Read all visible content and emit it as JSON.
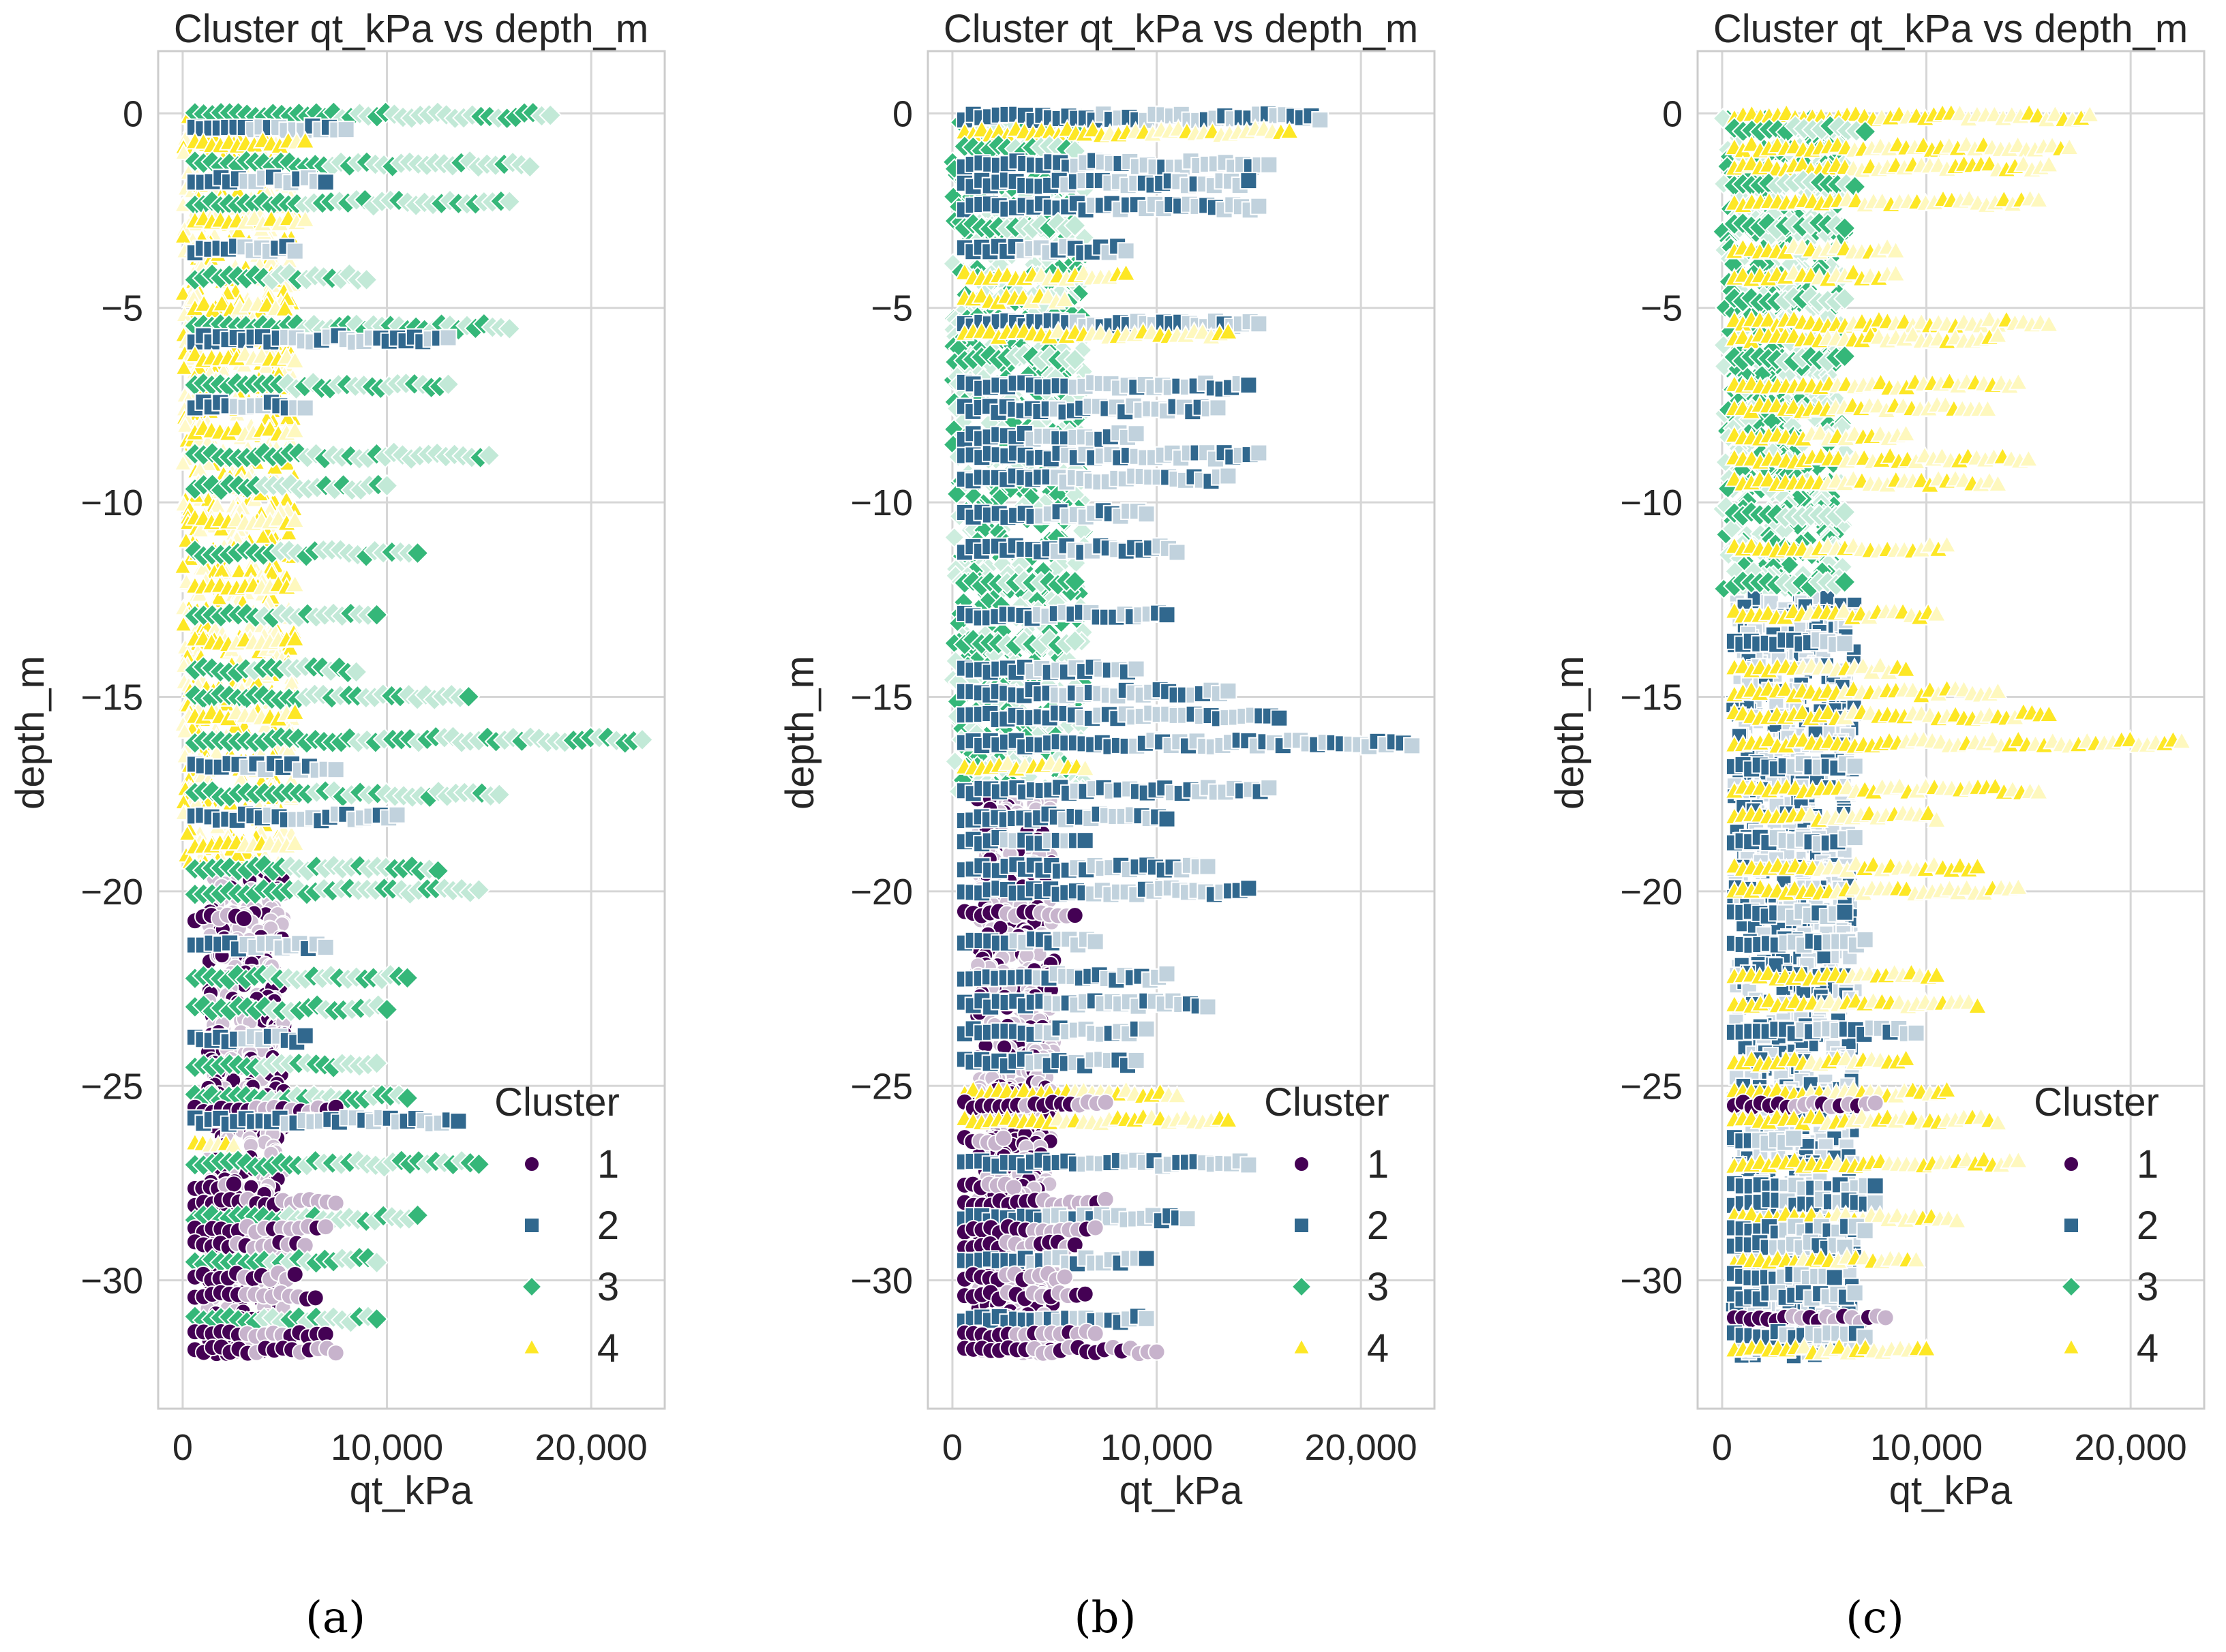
{
  "colors": {
    "1": "#440154",
    "2": "#31688e",
    "3": "#35b779",
    "4": "#fde725",
    "background": "#ffffff",
    "grid": "#d6d6d6",
    "axes_edge": "#cccccc",
    "text": "#262626"
  },
  "markers": {
    "1": "circle",
    "2": "square",
    "3": "diamond",
    "4": "triangle"
  },
  "chart_data": [
    {
      "type": "scatter",
      "caption": "(a)",
      "title": "Cluster qt_kPa vs depth_m",
      "xlabel": "qt_kPa",
      "ylabel": "depth_m",
      "xlim": [
        -1200,
        23600
      ],
      "ylim": [
        -33.3,
        1.6
      ],
      "xticks": [
        0,
        10000,
        20000
      ],
      "xtick_labels": [
        "0",
        "10,000",
        "20,000"
      ],
      "yticks": [
        0,
        -5,
        -10,
        -15,
        -20,
        -25,
        -30
      ],
      "ytick_labels": [
        "0",
        "−5",
        "−10",
        "−15",
        "−20",
        "−25",
        "−30"
      ],
      "legend": {
        "title": "Cluster",
        "entries": [
          "1",
          "2",
          "3",
          "4"
        ],
        "loc": "lower-right"
      },
      "bands": [
        {
          "d": -0.05,
          "c": 3,
          "x": 18000
        },
        {
          "d": -0.4,
          "c": 2,
          "x": 8000
        },
        {
          "d": -0.8,
          "c": 4,
          "x": 6000
        },
        {
          "d": -1.3,
          "c": 3,
          "x": 17000
        },
        {
          "d": -1.7,
          "c": 2,
          "x": 7000
        },
        {
          "d": -2.3,
          "c": 3,
          "x": 16000
        },
        {
          "d": -2.8,
          "c": 4,
          "x": 6000
        },
        {
          "d": -3.5,
          "c": 2,
          "x": 5500
        },
        {
          "d": -4.2,
          "c": 3,
          "x": 9000
        },
        {
          "d": -5.0,
          "c": 4,
          "x": 5000
        },
        {
          "d": -5.5,
          "c": 3,
          "x": 16000
        },
        {
          "d": -5.8,
          "c": 2,
          "x": 13000
        },
        {
          "d": -6.3,
          "c": 4,
          "x": 5500
        },
        {
          "d": -7.0,
          "c": 3,
          "x": 13000
        },
        {
          "d": -7.5,
          "c": 2,
          "x": 6000
        },
        {
          "d": -8.2,
          "c": 4,
          "x": 5500
        },
        {
          "d": -8.8,
          "c": 3,
          "x": 15000
        },
        {
          "d": -9.6,
          "c": 3,
          "x": 10000
        },
        {
          "d": -10.5,
          "c": 4,
          "x": 5500
        },
        {
          "d": -11.3,
          "c": 3,
          "x": 11500
        },
        {
          "d": -12.2,
          "c": 4,
          "x": 5500
        },
        {
          "d": -12.9,
          "c": 3,
          "x": 9500
        },
        {
          "d": -13.6,
          "c": 4,
          "x": 5500
        },
        {
          "d": -14.3,
          "c": 3,
          "x": 8500
        },
        {
          "d": -15.0,
          "c": 3,
          "x": 14000
        },
        {
          "d": -15.5,
          "c": 4,
          "x": 5500
        },
        {
          "d": -16.1,
          "c": 3,
          "x": 22500
        },
        {
          "d": -16.8,
          "c": 2,
          "x": 7500
        },
        {
          "d": -17.5,
          "c": 3,
          "x": 15500
        },
        {
          "d": -18.1,
          "c": 2,
          "x": 10500
        },
        {
          "d": -18.8,
          "c": 4,
          "x": 5500
        },
        {
          "d": -19.4,
          "c": 3,
          "x": 12500
        },
        {
          "d": -20.0,
          "c": 3,
          "x": 14500
        },
        {
          "d": -20.7,
          "c": 1,
          "x": 3000
        },
        {
          "d": -21.4,
          "c": 2,
          "x": 7000
        },
        {
          "d": -22.2,
          "c": 3,
          "x": 11000
        },
        {
          "d": -23.0,
          "c": 3,
          "x": 10000
        },
        {
          "d": -23.8,
          "c": 2,
          "x": 6000
        },
        {
          "d": -24.5,
          "c": 3,
          "x": 9500
        },
        {
          "d": -25.3,
          "c": 3,
          "x": 11000
        },
        {
          "d": -25.6,
          "c": 1,
          "x": 7500
        },
        {
          "d": -25.9,
          "c": 2,
          "x": 13500
        },
        {
          "d": -26.5,
          "c": 4,
          "x": 2500
        },
        {
          "d": -27.0,
          "c": 3,
          "x": 14500
        },
        {
          "d": -27.6,
          "c": 1,
          "x": 2500
        },
        {
          "d": -28.0,
          "c": 1,
          "x": 7500
        },
        {
          "d": -28.4,
          "c": 3,
          "x": 11500
        },
        {
          "d": -28.7,
          "c": 1,
          "x": 7000
        },
        {
          "d": -29.1,
          "c": 1,
          "x": 6000
        },
        {
          "d": -29.5,
          "c": 3,
          "x": 9500
        },
        {
          "d": -29.9,
          "c": 1,
          "x": 5500
        },
        {
          "d": -30.4,
          "c": 1,
          "x": 6500
        },
        {
          "d": -31.0,
          "c": 3,
          "x": 9500
        },
        {
          "d": -31.4,
          "c": 1,
          "x": 7000
        },
        {
          "d": -31.8,
          "c": 1,
          "x": 7500
        }
      ],
      "ribbon": [
        {
          "dmin": -0.2,
          "dmax": -19.5,
          "c": 4,
          "xmin": 0,
          "xmax": 5500
        },
        {
          "dmin": -19.5,
          "dmax": -32,
          "c": 1,
          "xmin": 1200,
          "xmax": 5000
        }
      ]
    },
    {
      "type": "scatter",
      "caption": "(b)",
      "title": "Cluster qt_kPa vs depth_m",
      "xlabel": "qt_kPa",
      "ylabel": "depth_m",
      "xlim": [
        -1200,
        23600
      ],
      "ylim": [
        -33.3,
        1.6
      ],
      "xticks": [
        0,
        10000,
        20000
      ],
      "xtick_labels": [
        "0",
        "10,000",
        "20,000"
      ],
      "yticks": [
        0,
        -5,
        -10,
        -15,
        -20,
        -25,
        -30
      ],
      "ytick_labels": [
        "0",
        "−5",
        "−10",
        "−15",
        "−20",
        "−25",
        "−30"
      ],
      "legend": {
        "title": "Cluster",
        "entries": [
          "1",
          "2",
          "3",
          "4"
        ],
        "loc": "lower-right"
      },
      "bands": [
        {
          "d": -0.1,
          "c": 2,
          "x": 18000
        },
        {
          "d": -0.5,
          "c": 4,
          "x": 16500
        },
        {
          "d": -0.9,
          "c": 3,
          "x": 6000
        },
        {
          "d": -1.3,
          "c": 2,
          "x": 15500
        },
        {
          "d": -1.8,
          "c": 2,
          "x": 14500
        },
        {
          "d": -2.4,
          "c": 2,
          "x": 15000
        },
        {
          "d": -2.9,
          "c": 3,
          "x": 6000
        },
        {
          "d": -3.5,
          "c": 2,
          "x": 8500
        },
        {
          "d": -4.2,
          "c": 4,
          "x": 8500
        },
        {
          "d": -4.8,
          "c": 4,
          "x": 5500
        },
        {
          "d": -5.4,
          "c": 2,
          "x": 15000
        },
        {
          "d": -5.7,
          "c": 4,
          "x": 13500
        },
        {
          "d": -6.3,
          "c": 3,
          "x": 6000
        },
        {
          "d": -7.0,
          "c": 2,
          "x": 14500
        },
        {
          "d": -7.6,
          "c": 2,
          "x": 13000
        },
        {
          "d": -8.3,
          "c": 2,
          "x": 9000
        },
        {
          "d": -8.8,
          "c": 2,
          "x": 15000
        },
        {
          "d": -9.4,
          "c": 2,
          "x": 13500
        },
        {
          "d": -10.3,
          "c": 2,
          "x": 9500
        },
        {
          "d": -11.2,
          "c": 2,
          "x": 11000
        },
        {
          "d": -12.1,
          "c": 3,
          "x": 6000
        },
        {
          "d": -12.9,
          "c": 2,
          "x": 10500
        },
        {
          "d": -13.6,
          "c": 3,
          "x": 6000
        },
        {
          "d": -14.3,
          "c": 2,
          "x": 9000
        },
        {
          "d": -14.9,
          "c": 2,
          "x": 13500
        },
        {
          "d": -15.5,
          "c": 2,
          "x": 16000
        },
        {
          "d": -16.2,
          "c": 2,
          "x": 22500
        },
        {
          "d": -16.8,
          "c": 4,
          "x": 6500
        },
        {
          "d": -17.4,
          "c": 2,
          "x": 15500
        },
        {
          "d": -18.1,
          "c": 2,
          "x": 10500
        },
        {
          "d": -18.7,
          "c": 2,
          "x": 6500
        },
        {
          "d": -19.4,
          "c": 2,
          "x": 12500
        },
        {
          "d": -20.0,
          "c": 2,
          "x": 14500
        },
        {
          "d": -20.6,
          "c": 1,
          "x": 6000
        },
        {
          "d": -21.3,
          "c": 2,
          "x": 7000
        },
        {
          "d": -22.2,
          "c": 2,
          "x": 10500
        },
        {
          "d": -22.9,
          "c": 2,
          "x": 12500
        },
        {
          "d": -23.6,
          "c": 2,
          "x": 9500
        },
        {
          "d": -24.4,
          "c": 2,
          "x": 9000
        },
        {
          "d": -25.2,
          "c": 4,
          "x": 11000
        },
        {
          "d": -25.5,
          "c": 1,
          "x": 7500
        },
        {
          "d": -25.9,
          "c": 4,
          "x": 13500
        },
        {
          "d": -26.4,
          "c": 1,
          "x": 2500
        },
        {
          "d": -27.0,
          "c": 2,
          "x": 14500
        },
        {
          "d": -27.6,
          "c": 1,
          "x": 3000
        },
        {
          "d": -28.0,
          "c": 1,
          "x": 7500
        },
        {
          "d": -28.4,
          "c": 2,
          "x": 11500
        },
        {
          "d": -28.7,
          "c": 1,
          "x": 7000
        },
        {
          "d": -29.1,
          "c": 1,
          "x": 6000
        },
        {
          "d": -29.5,
          "c": 2,
          "x": 9500
        },
        {
          "d": -29.9,
          "c": 1,
          "x": 5500
        },
        {
          "d": -30.4,
          "c": 1,
          "x": 6500
        },
        {
          "d": -31.0,
          "c": 2,
          "x": 9500
        },
        {
          "d": -31.4,
          "c": 1,
          "x": 7000
        },
        {
          "d": -31.8,
          "c": 1,
          "x": 10000
        }
      ],
      "ribbon": [
        {
          "dmin": -0.2,
          "dmax": -17.5,
          "c": 3,
          "xmin": 0,
          "xmax": 6500
        },
        {
          "dmin": -17.5,
          "dmax": -32,
          "c": 1,
          "xmin": 1200,
          "xmax": 5000
        }
      ]
    },
    {
      "type": "scatter",
      "caption": "(c)",
      "title": "Cluster qt_kPa vs depth_m",
      "xlabel": "qt_kPa",
      "ylabel": "depth_m",
      "xlim": [
        -1200,
        23600
      ],
      "ylim": [
        -33.3,
        1.6
      ],
      "xticks": [
        0,
        10000,
        20000
      ],
      "xtick_labels": [
        "0",
        "10,000",
        "20,000"
      ],
      "yticks": [
        0,
        -5,
        -10,
        -15,
        -20,
        -25,
        -30
      ],
      "ytick_labels": [
        "0",
        "−5",
        "−10",
        "−15",
        "−20",
        "−25",
        "−30"
      ],
      "legend": {
        "title": "Cluster",
        "entries": [
          "1",
          "2",
          "3",
          "4"
        ],
        "loc": "lower-right"
      },
      "bands": [
        {
          "d": -0.1,
          "c": 4,
          "x": 18000
        },
        {
          "d": -0.4,
          "c": 3,
          "x": 7000
        },
        {
          "d": -0.9,
          "c": 4,
          "x": 17000
        },
        {
          "d": -1.4,
          "c": 4,
          "x": 16000
        },
        {
          "d": -1.8,
          "c": 3,
          "x": 6500
        },
        {
          "d": -2.3,
          "c": 4,
          "x": 15500
        },
        {
          "d": -2.9,
          "c": 3,
          "x": 6000
        },
        {
          "d": -3.5,
          "c": 4,
          "x": 8500
        },
        {
          "d": -4.2,
          "c": 4,
          "x": 8500
        },
        {
          "d": -4.8,
          "c": 3,
          "x": 6000
        },
        {
          "d": -5.4,
          "c": 4,
          "x": 16000
        },
        {
          "d": -5.8,
          "c": 4,
          "x": 13500
        },
        {
          "d": -6.3,
          "c": 3,
          "x": 6000
        },
        {
          "d": -7.0,
          "c": 4,
          "x": 14500
        },
        {
          "d": -7.6,
          "c": 4,
          "x": 13000
        },
        {
          "d": -8.3,
          "c": 4,
          "x": 9000
        },
        {
          "d": -8.9,
          "c": 4,
          "x": 15000
        },
        {
          "d": -9.5,
          "c": 4,
          "x": 13500
        },
        {
          "d": -10.3,
          "c": 3,
          "x": 6000
        },
        {
          "d": -11.2,
          "c": 4,
          "x": 11000
        },
        {
          "d": -12.1,
          "c": 3,
          "x": 6000
        },
        {
          "d": -12.9,
          "c": 4,
          "x": 10500
        },
        {
          "d": -13.6,
          "c": 2,
          "x": 6000
        },
        {
          "d": -14.3,
          "c": 4,
          "x": 9000
        },
        {
          "d": -14.9,
          "c": 4,
          "x": 13500
        },
        {
          "d": -15.5,
          "c": 4,
          "x": 16000
        },
        {
          "d": -16.2,
          "c": 4,
          "x": 22500
        },
        {
          "d": -16.8,
          "c": 2,
          "x": 6500
        },
        {
          "d": -17.4,
          "c": 4,
          "x": 15500
        },
        {
          "d": -18.1,
          "c": 4,
          "x": 10500
        },
        {
          "d": -18.7,
          "c": 2,
          "x": 6500
        },
        {
          "d": -19.4,
          "c": 4,
          "x": 12500
        },
        {
          "d": -20.0,
          "c": 4,
          "x": 14500
        },
        {
          "d": -20.6,
          "c": 2,
          "x": 6000
        },
        {
          "d": -21.3,
          "c": 2,
          "x": 7000
        },
        {
          "d": -22.2,
          "c": 4,
          "x": 10500
        },
        {
          "d": -22.9,
          "c": 4,
          "x": 12500
        },
        {
          "d": -23.6,
          "c": 2,
          "x": 9500
        },
        {
          "d": -24.4,
          "c": 4,
          "x": 9000
        },
        {
          "d": -25.2,
          "c": 4,
          "x": 11000
        },
        {
          "d": -25.5,
          "c": 1,
          "x": 7500
        },
        {
          "d": -25.9,
          "c": 4,
          "x": 13500
        },
        {
          "d": -26.4,
          "c": 2,
          "x": 3500
        },
        {
          "d": -27.0,
          "c": 4,
          "x": 14500
        },
        {
          "d": -27.6,
          "c": 2,
          "x": 7500
        },
        {
          "d": -28.0,
          "c": 2,
          "x": 7500
        },
        {
          "d": -28.4,
          "c": 4,
          "x": 11500
        },
        {
          "d": -28.7,
          "c": 2,
          "x": 7000
        },
        {
          "d": -29.1,
          "c": 2,
          "x": 6000
        },
        {
          "d": -29.5,
          "c": 4,
          "x": 9500
        },
        {
          "d": -29.9,
          "c": 2,
          "x": 5500
        },
        {
          "d": -30.4,
          "c": 2,
          "x": 6500
        },
        {
          "d": -31.0,
          "c": 1,
          "x": 8000
        },
        {
          "d": -31.4,
          "c": 2,
          "x": 7000
        },
        {
          "d": -31.8,
          "c": 4,
          "x": 10000
        }
      ],
      "ribbon": [
        {
          "dmin": -0.2,
          "dmax": -12.5,
          "c": 3,
          "xmin": 0,
          "xmax": 6000
        },
        {
          "dmin": -12.5,
          "dmax": -32,
          "c": 2,
          "xmin": 500,
          "xmax": 6500
        }
      ]
    }
  ]
}
